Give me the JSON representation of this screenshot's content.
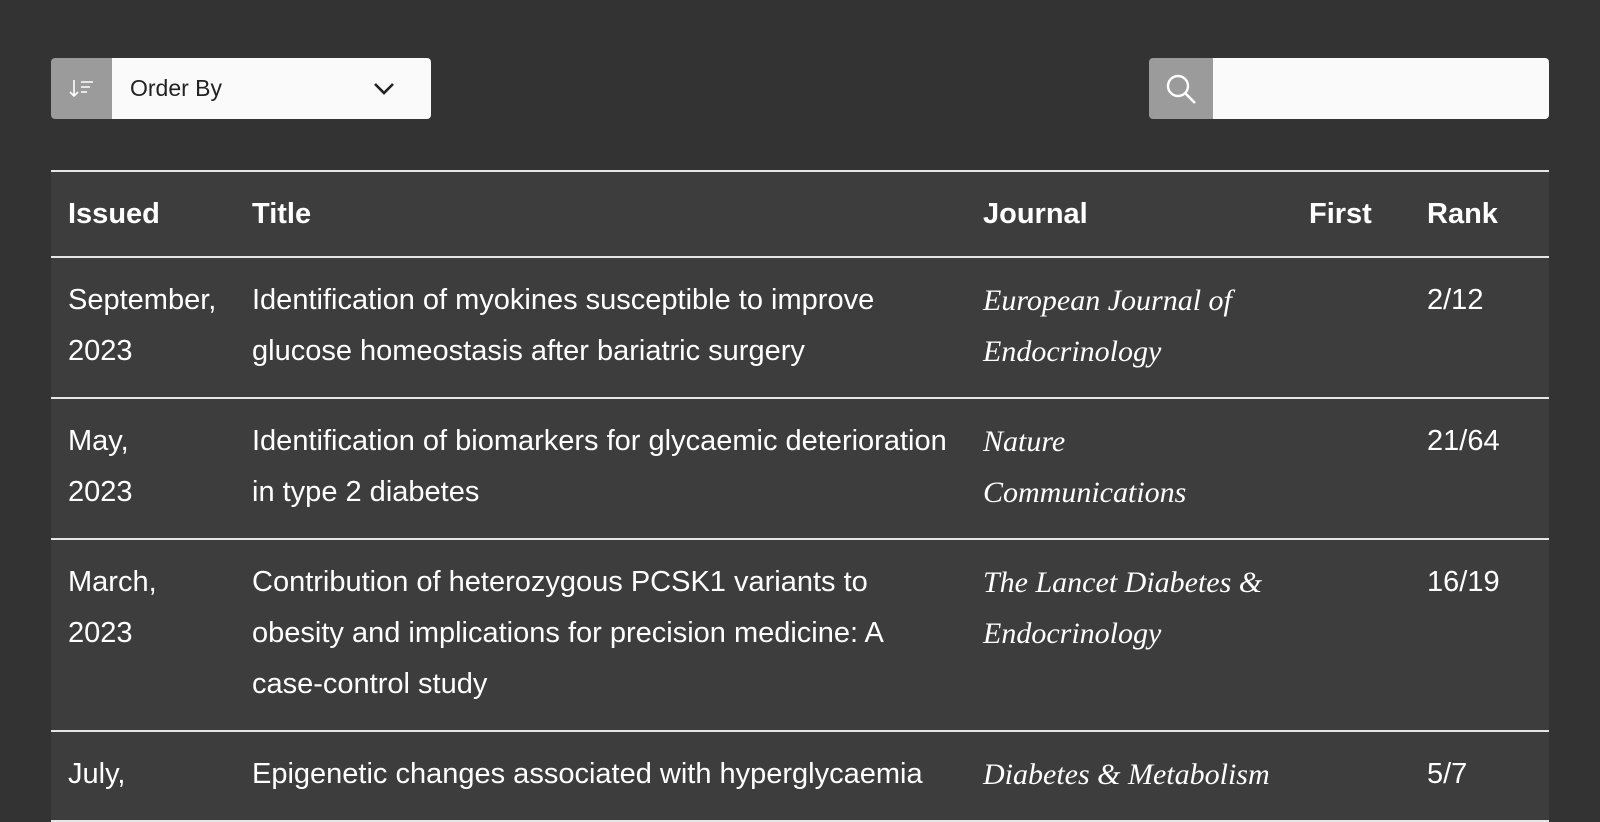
{
  "toolbar": {
    "order_by_label": "Order By",
    "sort_icon": "sort-descending-icon",
    "chevron_icon": "chevron-down-icon",
    "search_icon": "search-icon",
    "search_value": ""
  },
  "table": {
    "headers": {
      "issued": "Issued",
      "title": "Title",
      "journal": "Journal",
      "first": "First",
      "rank": "Rank"
    },
    "rows": [
      {
        "issued_month": "September,",
        "issued_year": "2023",
        "title": "Identification of myokines susceptible to improve glucose homeostasis after bariatric surgery",
        "journal": "European Journal of Endocrinology",
        "first": "",
        "rank": "2/12"
      },
      {
        "issued_month": "May,",
        "issued_year": "2023",
        "title": "Identification of biomarkers for glycaemic deterioration in type 2 diabetes",
        "journal": "Nature Communications",
        "first": "",
        "rank": "21/64"
      },
      {
        "issued_month": "March,",
        "issued_year": "2023",
        "title": "Contribution of heterozygous PCSK1 variants to obesity and implications for precision medicine: A case-control study",
        "journal": "The Lancet Diabetes & Endocrinology",
        "first": "",
        "rank": "16/19"
      },
      {
        "issued_month": "July,",
        "issued_year": "",
        "title": "Epigenetic changes associated with hyperglycaemia",
        "journal": "Diabetes & Metabolism",
        "first": "",
        "rank": "5/7"
      }
    ]
  }
}
